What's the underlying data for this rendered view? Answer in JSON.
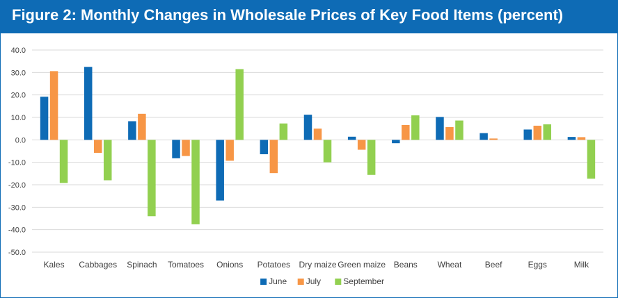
{
  "header": {
    "title": "Figure 2: Monthly Changes in Wholesale Prices of Key Food Items (percent)"
  },
  "colors": {
    "header_bg": "#0e6bb5",
    "June": "#0e6bb5",
    "July": "#f79646",
    "September": "#92d050",
    "grid": "#d9d9d9",
    "text": "#404040"
  },
  "chart_data": {
    "type": "bar",
    "title": "Figure 2: Monthly Changes in Wholesale Prices of Key Food Items (percent)",
    "xlabel": "",
    "ylabel": "",
    "ylim": [
      -50,
      40
    ],
    "yticks": [
      "40.0",
      "30.0",
      "20.0",
      "10.0",
      "0.0",
      "-10.0",
      "-20.0",
      "-30.0",
      "-40.0",
      "-50.0"
    ],
    "grid": true,
    "legend_position": "bottom-center",
    "categories": [
      "Kales",
      "Cabbages",
      "Spinach",
      "Tomatoes",
      "Onions",
      "Potatoes",
      "Dry maize",
      "Green maize",
      "Beans",
      "Wheat",
      "Beef",
      "Eggs",
      "Milk"
    ],
    "series": [
      {
        "name": "June",
        "values": [
          19.2,
          32.5,
          8.3,
          -8.2,
          -27.0,
          -6.4,
          11.2,
          1.4,
          -1.5,
          10.2,
          3.0,
          4.6,
          1.3
        ]
      },
      {
        "name": "July",
        "values": [
          30.6,
          -5.8,
          11.6,
          -7.2,
          -9.3,
          -14.8,
          5.0,
          -4.4,
          6.6,
          5.7,
          0.6,
          6.3,
          1.2
        ]
      },
      {
        "name": "September",
        "values": [
          -19.2,
          -18.0,
          -34.0,
          -37.6,
          31.5,
          7.3,
          -10.0,
          -15.6,
          10.9,
          8.6,
          0.0,
          6.9,
          -17.3
        ]
      }
    ]
  }
}
